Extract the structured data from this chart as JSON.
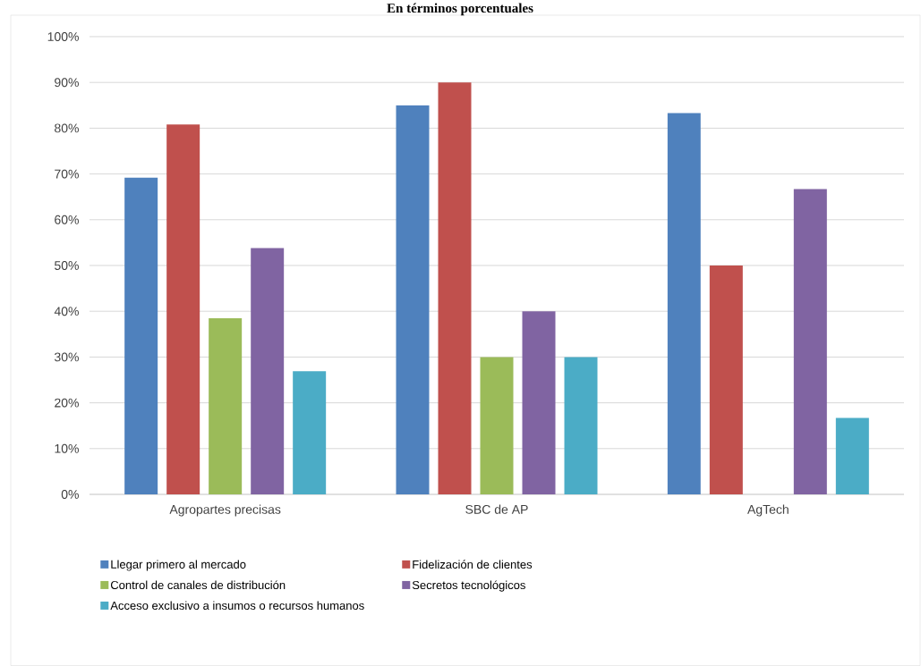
{
  "chart_data": {
    "type": "bar",
    "title": "En términos porcentuales",
    "categories": [
      "Agropartes precisas",
      "SBC de AP",
      "AgTech"
    ],
    "series": [
      {
        "name": "Llegar primero al mercado",
        "color": "#4f81bd",
        "values": [
          69.2,
          85,
          83.3
        ]
      },
      {
        "name": "Fidelización de clientes",
        "color": "#c0504d",
        "values": [
          80.8,
          90,
          50
        ]
      },
      {
        "name": "Control de canales de distribución",
        "color": "#9bbb59",
        "values": [
          38.5,
          30,
          0
        ]
      },
      {
        "name": "Secretos tecnológicos",
        "color": "#8064a2",
        "values": [
          53.8,
          40,
          66.7
        ]
      },
      {
        "name": "Acceso exclusivo a insumos o recursos humanos",
        "color": "#4bacc6",
        "values": [
          26.9,
          30,
          16.7
        ]
      }
    ],
    "ylim": [
      0,
      100
    ],
    "yticks": [
      {
        "value": 0,
        "label": "0%"
      },
      {
        "value": 10,
        "label": "10%"
      },
      {
        "value": 20,
        "label": "20%"
      },
      {
        "value": 30,
        "label": "30%"
      },
      {
        "value": 40,
        "label": "40%"
      },
      {
        "value": 50,
        "label": "50%"
      },
      {
        "value": 60,
        "label": "60%"
      },
      {
        "value": 70,
        "label": "70%"
      },
      {
        "value": 80,
        "label": "80%"
      },
      {
        "value": 90,
        "label": "90%"
      },
      {
        "value": 100,
        "label": "100%"
      }
    ],
    "grid": "y",
    "legend": "bottom"
  }
}
